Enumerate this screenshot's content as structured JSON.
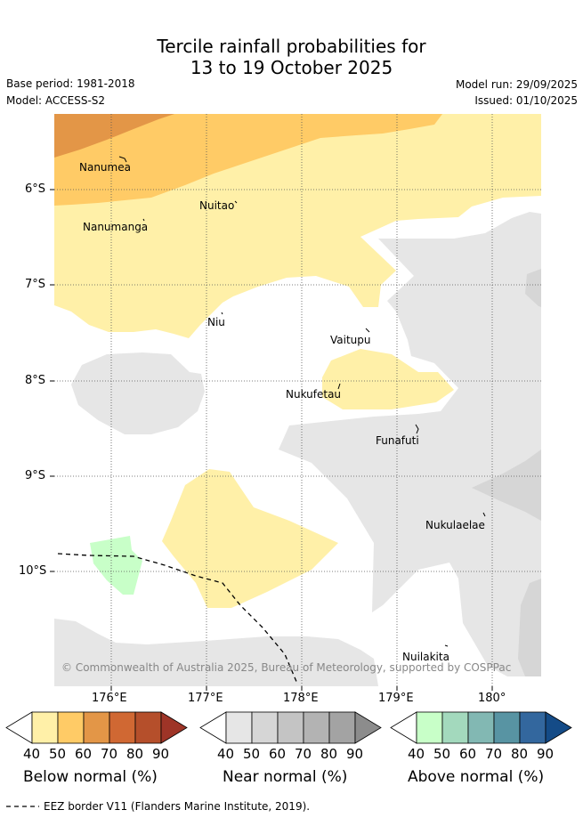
{
  "title_line1": "Tercile rainfall probabilities for",
  "title_line2": "13 to 19 October 2025",
  "base_period": "Base period: 1981-2018",
  "model": "Model: ACCESS-S2",
  "model_run": "Model run: 29/09/2025",
  "issued": "Issued: 01/10/2025",
  "y_ticks": [
    "6°S",
    "7°S",
    "8°S",
    "9°S",
    "10°S"
  ],
  "x_ticks": [
    "176°E",
    "177°E",
    "178°E",
    "179°E",
    "180°"
  ],
  "places": {
    "nanumea": "Nanumea",
    "nuitao": "Nuitao",
    "nanumanga": "Nanumanga",
    "niu": "Niu",
    "vaitupu": "Vaitupu",
    "nukufetau": "Nukufetau",
    "funafuti": "Funafuti",
    "nukulaelae": "Nukulaelae",
    "nuilakita": "Nuilakita"
  },
  "copyright": "© Commonwealth of Australia 2025, Bureau of Meteorology, supported by COSPPac",
  "colorbar_ticks": [
    "40",
    "50",
    "60",
    "70",
    "80",
    "90"
  ],
  "colorbars": {
    "below": {
      "label": "Below normal (%)",
      "colors": [
        "#fff0a8",
        "#ffcb66",
        "#e39647",
        "#d06833",
        "#b54f2b",
        "#9e3427"
      ]
    },
    "near": {
      "label": "Near normal (%)",
      "colors": [
        "#e6e6e6",
        "#d6d6d6",
        "#c4c4c4",
        "#b3b3b3",
        "#a3a3a3",
        "#8c8c8c"
      ]
    },
    "above": {
      "label": "Above normal (%)",
      "colors": [
        "#c8ffc8",
        "#a3d9bd",
        "#82b8b3",
        "#5894a3",
        "#33679e",
        "#144b87"
      ]
    }
  },
  "eez_legend": "EEZ border V11 (Flanders Marine Institute, 2019)."
}
